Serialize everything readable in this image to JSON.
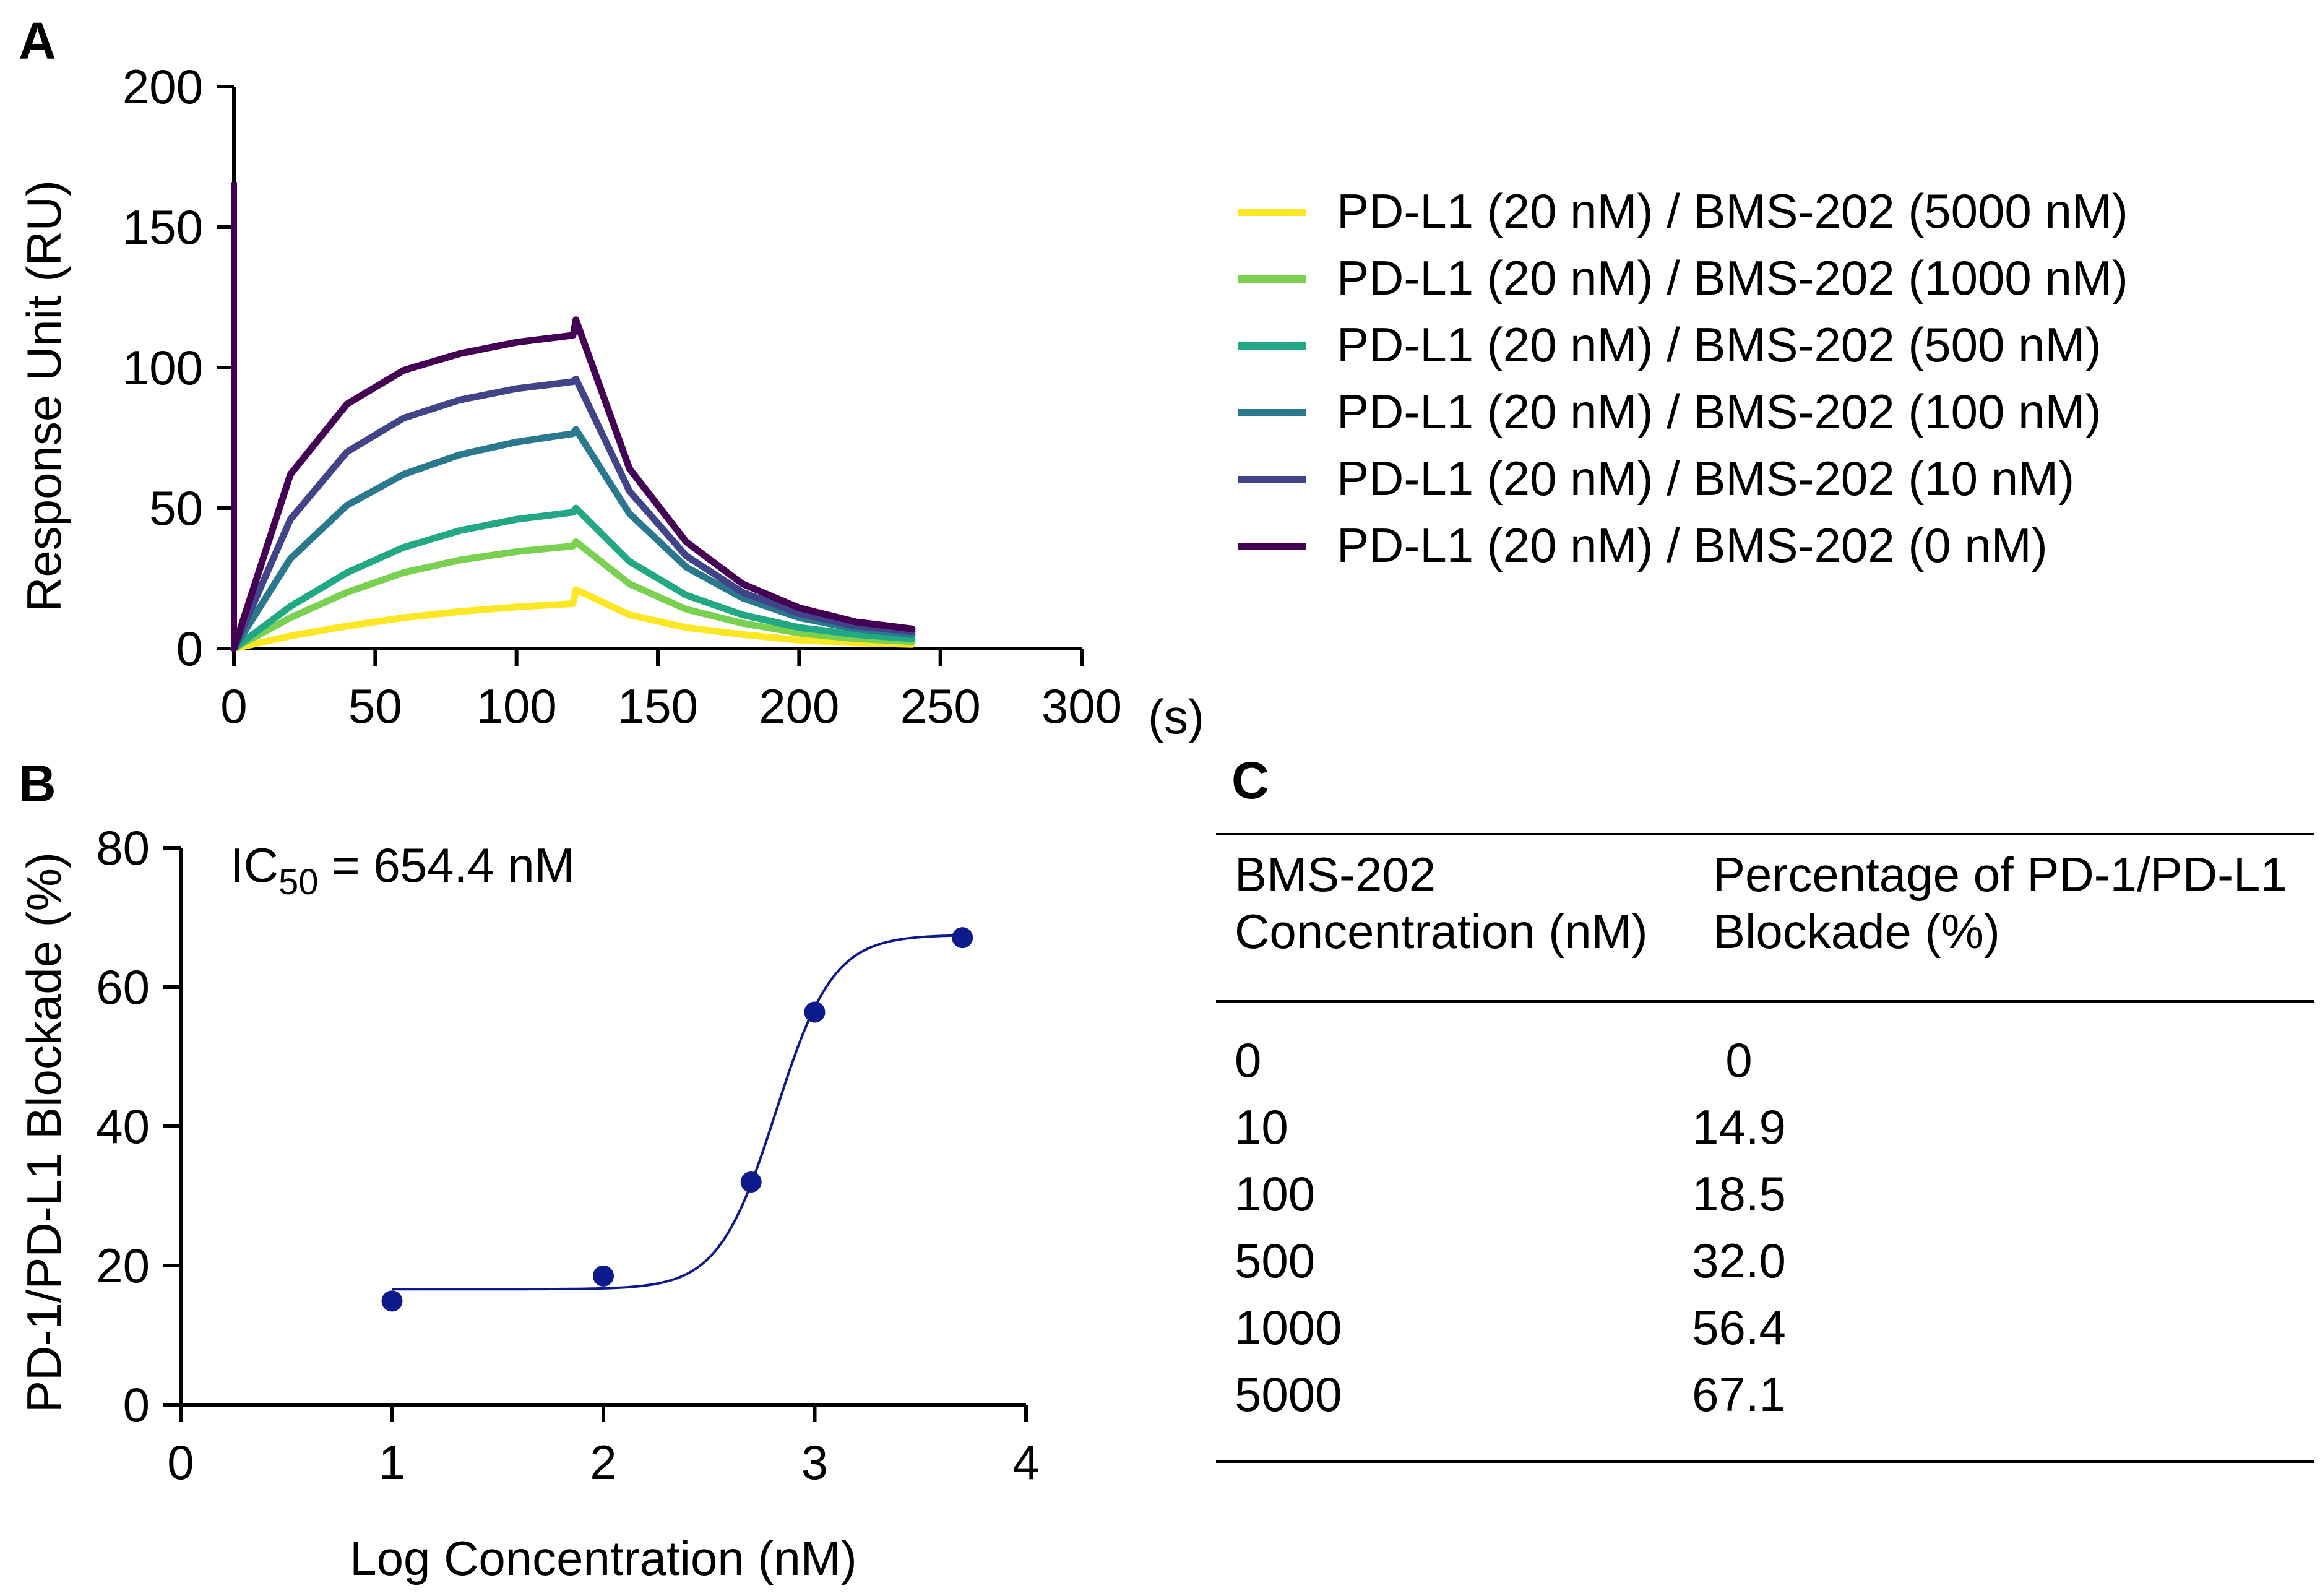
{
  "panels": {
    "a": "A",
    "b": "B",
    "c": "C"
  },
  "chart_data": [
    {
      "panel": "A",
      "type": "line",
      "ylabel": "Response Unit (RU)",
      "xunit": "(s)",
      "xlim": [
        0,
        300
      ],
      "ylim": [
        0,
        200
      ],
      "xticks": [
        0,
        50,
        100,
        150,
        200,
        250,
        300
      ],
      "yticks": [
        0,
        50,
        100,
        150,
        200
      ],
      "association_end_s": 120,
      "dissociation_end_s": 240,
      "spike_0nM_at_t0": 166,
      "series": [
        {
          "name": "PD-L1 (20 nM) / BMS-202 (5000 nM)",
          "color": "#fde725",
          "x": [
            0,
            20,
            40,
            60,
            80,
            100,
            120,
            121,
            140,
            160,
            180,
            200,
            220,
            240
          ],
          "values": [
            0,
            4.5,
            8,
            11,
            13.2,
            14.8,
            16,
            21,
            12,
            7.5,
            5,
            3,
            2,
            1.5
          ]
        },
        {
          "name": "PD-L1 (20 nM) / BMS-202 (1000 nM)",
          "color": "#7ad151",
          "x": [
            0,
            20,
            40,
            60,
            80,
            100,
            120,
            121,
            140,
            160,
            180,
            200,
            220,
            240
          ],
          "values": [
            0,
            11,
            20,
            27,
            31.5,
            34.5,
            36.5,
            38,
            23,
            14,
            9,
            5.5,
            3.5,
            2.5
          ]
        },
        {
          "name": "PD-L1 (20 nM) / BMS-202 (500 nM)",
          "color": "#22a884",
          "x": [
            0,
            20,
            40,
            60,
            80,
            100,
            120,
            121,
            140,
            160,
            180,
            200,
            220,
            240
          ],
          "values": [
            0,
            15,
            27,
            36,
            42,
            46,
            48.5,
            50,
            31,
            19,
            12,
            7.5,
            5,
            3.5
          ]
        },
        {
          "name": "PD-L1 (20 nM) / BMS-202 (100 nM)",
          "color": "#2a788e",
          "x": [
            0,
            20,
            40,
            60,
            80,
            100,
            120,
            121,
            140,
            160,
            180,
            200,
            220,
            240
          ],
          "values": [
            0,
            32,
            51,
            62,
            69,
            73.5,
            76.5,
            78,
            48,
            29,
            18,
            11,
            7,
            5
          ]
        },
        {
          "name": "PD-L1 (20 nM) / BMS-202 (10 nM)",
          "color": "#414487",
          "x": [
            0,
            20,
            40,
            60,
            80,
            100,
            120,
            121,
            140,
            160,
            180,
            200,
            220,
            240
          ],
          "values": [
            0,
            46,
            70,
            82,
            88.5,
            92.5,
            95,
            96,
            56,
            33,
            20,
            12.5,
            8,
            6
          ]
        },
        {
          "name": "PD-L1 (20 nM) / BMS-202 (0 nM)",
          "color": "#440154",
          "x": [
            0,
            20,
            40,
            60,
            80,
            100,
            120,
            121,
            140,
            160,
            180,
            200,
            220,
            240
          ],
          "values": [
            0,
            62,
            87,
            99,
            105,
            109,
            111.5,
            117,
            64,
            38,
            23,
            14.5,
            9.5,
            7
          ]
        }
      ]
    },
    {
      "panel": "B",
      "type": "scatter",
      "ylabel": "PD-1/PD-L1 Blockade (%)",
      "xlabel": "Log Concentration (nM)",
      "annotation": {
        "prefix": "IC",
        "sub": "50",
        "suffix": " = 654.4 nM"
      },
      "xlim": [
        0,
        4
      ],
      "ylim": [
        0,
        80
      ],
      "xticks": [
        0,
        1,
        2,
        3,
        4
      ],
      "yticks": [
        0,
        20,
        40,
        60,
        80
      ],
      "point_color": "#0d1a8c",
      "x": [
        1,
        2,
        2.699,
        3,
        3.699
      ],
      "values": [
        14.9,
        18.5,
        32.0,
        56.4,
        67.1
      ],
      "fit": {
        "bottom": 16.6,
        "top": 67.5,
        "log_ic50": 2.816,
        "hill": 3.2
      }
    }
  ],
  "table": {
    "label": "C",
    "headers": [
      [
        "BMS-202",
        "Concentration (nM)"
      ],
      [
        "Percentage of PD-1/PD-L1",
        "Blockade (%)"
      ]
    ],
    "rows": [
      [
        "0",
        "0"
      ],
      [
        "10",
        "14.9"
      ],
      [
        "100",
        "18.5"
      ],
      [
        "500",
        "32.0"
      ],
      [
        "1000",
        "56.4"
      ],
      [
        "5000",
        "67.1"
      ]
    ]
  }
}
